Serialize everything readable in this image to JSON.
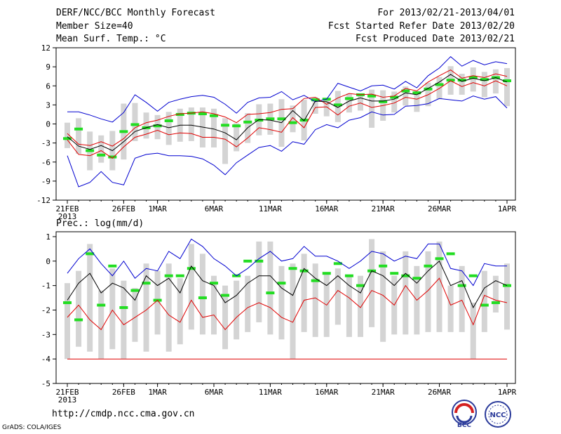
{
  "header": {
    "title": "DERF/NCC/BCC Monthly Forecast",
    "member_size": "Member Size=40",
    "variable": "Mean Surf. Temp.: °C",
    "period": "For 2013/02/21-2013/04/01",
    "started": "Fcst Started Refer Date 2013/02/20",
    "produced": "Fcst Produced Date 2013/02/21"
  },
  "footer": {
    "url": "http://cmdp.ncc.cma.gov.cn",
    "grads": "GrADS: COLA/IGES",
    "logo_bcc": "BCC",
    "logo_ncc": "NCC"
  },
  "colors": {
    "ensemble_max": "#0000d0",
    "ensemble_min": "#0000d0",
    "percentile_band": "#e00000",
    "mean": "#000000",
    "climatology": "#22dd22",
    "box": "#d4d4d4"
  },
  "chart_data": [
    {
      "type": "line",
      "title": "Mean Surf. Temp.: °C",
      "ylim": [
        -12,
        12
      ],
      "yticks": [
        -12,
        -9,
        -6,
        -3,
        0,
        3,
        6,
        9,
        12
      ],
      "xtick_labels": [
        "21FEB",
        "26FEB",
        "1MAR",
        "6MAR",
        "11MAR",
        "16MAR",
        "21MAR",
        "26MAR",
        "1APR"
      ],
      "xtick_days": [
        0,
        5,
        8,
        13,
        18,
        23,
        28,
        33,
        39
      ],
      "year_label": "2013",
      "days": 40,
      "series": [
        {
          "name": "max",
          "values": [
            1.9,
            1.9,
            1.4,
            0.8,
            0.3,
            1.8,
            4.6,
            3.4,
            2.0,
            3.4,
            3.9,
            4.3,
            4.5,
            4.2,
            3.1,
            1.7,
            3.4,
            4.1,
            4.2,
            5.1,
            3.8,
            4.5,
            3.5,
            3.9,
            6.4,
            5.8,
            5.2,
            6.0,
            6.1,
            5.5,
            6.7,
            5.7,
            7.6,
            8.8,
            10.6,
            9.1,
            10.0,
            9.3,
            9.8,
            9.5
          ]
        },
        {
          "name": "p_high",
          "values": [
            -1.5,
            -3.2,
            -3.4,
            -2.8,
            -3.5,
            -2.3,
            -0.6,
            0.2,
            0.6,
            1.2,
            1.6,
            1.7,
            1.9,
            1.6,
            1.1,
            0.2,
            1.5,
            1.6,
            1.8,
            2.3,
            2.4,
            4.0,
            4.2,
            3.1,
            4.1,
            4.8,
            4.6,
            4.7,
            4.2,
            4.4,
            5.6,
            5.2,
            6.6,
            7.6,
            8.5,
            7.2,
            7.6,
            7.3,
            7.9,
            7.5
          ]
        },
        {
          "name": "mean",
          "values": [
            -2.0,
            -3.5,
            -4.0,
            -3.4,
            -4.2,
            -2.8,
            -1.2,
            -0.6,
            -0.1,
            -0.6,
            -0.2,
            -0.2,
            -0.5,
            -0.8,
            -1.4,
            -2.5,
            -0.6,
            0.7,
            0.6,
            0.2,
            2.1,
            0.5,
            3.6,
            3.5,
            2.6,
            3.6,
            4.1,
            3.6,
            3.6,
            3.9,
            4.9,
            4.6,
            5.6,
            6.6,
            7.8,
            6.7,
            7.2,
            6.8,
            7.3,
            6.6
          ]
        },
        {
          "name": "p_low",
          "values": [
            -2.5,
            -4.8,
            -5.0,
            -4.2,
            -5.4,
            -3.6,
            -2.1,
            -1.6,
            -1.0,
            -1.7,
            -1.4,
            -1.5,
            -2.1,
            -2.1,
            -2.4,
            -3.6,
            -2.2,
            -0.6,
            -0.9,
            -1.3,
            1.0,
            -0.6,
            2.6,
            2.7,
            1.4,
            2.8,
            3.3,
            2.6,
            2.9,
            3.3,
            4.2,
            3.9,
            4.6,
            5.6,
            6.8,
            5.9,
            6.5,
            6.0,
            6.8,
            6.0
          ]
        },
        {
          "name": "min",
          "values": [
            -5.0,
            -9.9,
            -9.2,
            -7.5,
            -9.2,
            -9.6,
            -5.4,
            -4.8,
            -4.6,
            -5.0,
            -5.0,
            -5.1,
            -5.5,
            -6.5,
            -8.0,
            -6.1,
            -4.9,
            -3.7,
            -3.4,
            -4.3,
            -2.8,
            -3.2,
            -0.9,
            -0.1,
            -0.6,
            0.6,
            1.0,
            1.9,
            1.4,
            1.5,
            2.8,
            2.9,
            3.2,
            4.0,
            3.8,
            3.6,
            4.4,
            3.9,
            4.3,
            2.5
          ]
        }
      ],
      "boxes": [
        {
          "low": [
            -3.8,
            -4.7,
            -7.3,
            -6.1,
            -7.3,
            -5.6,
            -2.7,
            -2.3,
            -2.4,
            -3.3,
            -2.8,
            -2.7,
            -3.7,
            -3.7,
            -6.3,
            -4.3,
            -3.0,
            -1.8,
            -1.7,
            -3.6,
            -1.3,
            -2.6,
            1.6,
            1.2,
            0.3,
            1.8,
            2.1,
            -0.6,
            0.5,
            1.8,
            2.9,
            1.9,
            2.8,
            3.9,
            4.6,
            4.6,
            5.1,
            4.2,
            4.8,
            2.8
          ],
          "high": [
            0.2,
            0.9,
            -1.2,
            -1.8,
            -1.1,
            3.2,
            3.3,
            1.8,
            1.4,
            1.9,
            2.4,
            2.6,
            2.6,
            2.4,
            0.9,
            0.1,
            1.7,
            3.1,
            3.2,
            3.9,
            2.9,
            3.8,
            4.2,
            4.1,
            5.2,
            4.8,
            4.7,
            5.4,
            5.3,
            5.1,
            5.9,
            5.2,
            6.5,
            7.4,
            9.1,
            7.9,
            8.9,
            8.2,
            8.6,
            8.8
          ]
        }
      ],
      "climatology": [
        -2.3,
        -0.8,
        -4.2,
        -4.9,
        -5.2,
        -1.2,
        -0.1,
        -0.6,
        -0.3,
        0.5,
        1.5,
        1.7,
        1.6,
        1.3,
        -0.2,
        -0.3,
        0.3,
        0.6,
        0.8,
        0.8,
        0.2,
        0.6,
        3.8,
        3.9,
        3.0,
        4.0,
        4.6,
        4.4,
        3.5,
        4.2,
        5.2,
        4.9,
        5.5,
        6.2,
        6.9,
        6.9,
        7.3,
        7.0,
        7.3,
        6.8
      ]
    },
    {
      "type": "line",
      "title": "Prec.: log(mm/d)",
      "ylim": [
        -5,
        1.2
      ],
      "yticks": [
        -5,
        -4,
        -3,
        -2,
        -1,
        0,
        1
      ],
      "xtick_labels": [
        "21FEB",
        "26FEB",
        "1MAR",
        "6MAR",
        "11MAR",
        "16MAR",
        "21MAR",
        "26MAR",
        "1APR"
      ],
      "xtick_days": [
        0,
        5,
        8,
        13,
        18,
        23,
        28,
        33,
        39
      ],
      "year_label": "2013",
      "days": 40,
      "series": [
        {
          "name": "max",
          "values": [
            -0.5,
            0.1,
            0.5,
            -0.1,
            -0.6,
            0.0,
            -0.7,
            -0.3,
            -0.4,
            0.4,
            0.1,
            0.9,
            0.6,
            0.1,
            -0.2,
            -0.6,
            -0.3,
            0.1,
            0.4,
            0.0,
            0.1,
            0.6,
            0.2,
            0.2,
            0.0,
            -0.3,
            0.0,
            0.4,
            0.3,
            0.0,
            0.2,
            0.1,
            0.7,
            0.7,
            -0.3,
            -0.4,
            -1.0,
            -0.1,
            -0.2,
            -0.2
          ]
        },
        {
          "name": "mean",
          "values": [
            -1.6,
            -0.9,
            -0.5,
            -1.3,
            -0.9,
            -1.1,
            -1.6,
            -0.6,
            -1.0,
            -0.7,
            -1.3,
            -0.2,
            -0.8,
            -1.0,
            -1.7,
            -1.4,
            -0.9,
            -0.6,
            -0.6,
            -1.1,
            -1.4,
            -0.3,
            -0.7,
            -1.0,
            -0.6,
            -1.0,
            -1.3,
            -0.4,
            -0.6,
            -1.0,
            -0.5,
            -0.9,
            -0.4,
            0.0,
            -1.0,
            -0.8,
            -1.9,
            -1.1,
            -0.8,
            -1.0
          ]
        },
        {
          "name": "min",
          "values": [
            -2.3,
            -1.8,
            -2.4,
            -2.8,
            -2.0,
            -2.6,
            -2.3,
            -2.0,
            -1.6,
            -2.2,
            -2.5,
            -1.6,
            -2.3,
            -2.2,
            -2.8,
            -2.3,
            -1.9,
            -1.7,
            -1.9,
            -2.3,
            -2.5,
            -1.6,
            -1.5,
            -1.8,
            -1.2,
            -1.5,
            -1.9,
            -1.2,
            -1.4,
            -1.8,
            -1.0,
            -1.6,
            -1.2,
            -0.7,
            -1.8,
            -1.6,
            -2.6,
            -1.4,
            -1.6,
            -1.7
          ]
        },
        {
          "name": "floor",
          "values": [
            -4.0,
            -4.0,
            -4.0,
            -4.0,
            -4.0,
            -4.0,
            -4.0,
            -4.0,
            -4.0,
            -4.0,
            -4.0,
            -4.0,
            -4.0,
            -4.0,
            -4.0,
            -4.0,
            -4.0,
            -4.0,
            -4.0,
            -4.0,
            -4.0,
            -4.0,
            -4.0,
            -4.0,
            -4.0,
            -4.0,
            -4.0,
            -4.0,
            -4.0,
            -4.0,
            -4.0,
            -4.0,
            -4.0,
            -4.0,
            -4.0,
            -4.0,
            -4.0,
            -4.0,
            -4.0,
            -4.0
          ]
        }
      ],
      "boxes": [
        {
          "low": [
            -4.0,
            -3.5,
            -3.7,
            -4.0,
            -3.6,
            -4.0,
            -3.3,
            -3.7,
            -3.0,
            -3.7,
            -3.4,
            -2.8,
            -3.0,
            -3.0,
            -3.6,
            -3.2,
            -2.9,
            -2.5,
            -3.0,
            -3.2,
            -4.0,
            -2.9,
            -3.1,
            -3.1,
            -2.6,
            -3.1,
            -3.1,
            -2.7,
            -3.3,
            -3.0,
            -3.0,
            -3.0,
            -2.9,
            -2.9,
            -2.9,
            -2.9,
            -4.0,
            -2.9,
            -2.1,
            -2.8
          ],
          "high": [
            -0.9,
            -0.4,
            0.7,
            -1.2,
            -0.3,
            -0.8,
            -1.1,
            -0.1,
            -0.4,
            -0.1,
            -0.7,
            0.7,
            0.3,
            -0.6,
            -1.0,
            -0.8,
            -0.6,
            0.8,
            0.8,
            -0.2,
            -0.1,
            0.3,
            -0.1,
            -0.5,
            -0.3,
            -0.6,
            -0.6,
            0.9,
            0.4,
            -0.6,
            0.4,
            -0.2,
            0.4,
            0.8,
            -1.0,
            -0.2,
            -1.7,
            -0.4,
            -0.6,
            -0.1
          ]
        }
      ],
      "climatology": [
        -1.7,
        -2.4,
        0.3,
        -1.8,
        -0.2,
        -1.9,
        -1.2,
        -0.9,
        -1.6,
        -0.6,
        -0.6,
        -0.3,
        -1.5,
        -0.9,
        -1.4,
        -0.6,
        0.0,
        0.0,
        -1.3,
        -0.9,
        -0.3,
        -0.4,
        -0.8,
        -0.5,
        -0.1,
        -0.6,
        -1.0,
        -0.4,
        -0.2,
        -0.5,
        -0.6,
        -0.7,
        -0.2,
        0.1,
        0.3,
        -1.0,
        -0.6,
        -1.8,
        -1.7,
        -1.0
      ]
    }
  ]
}
